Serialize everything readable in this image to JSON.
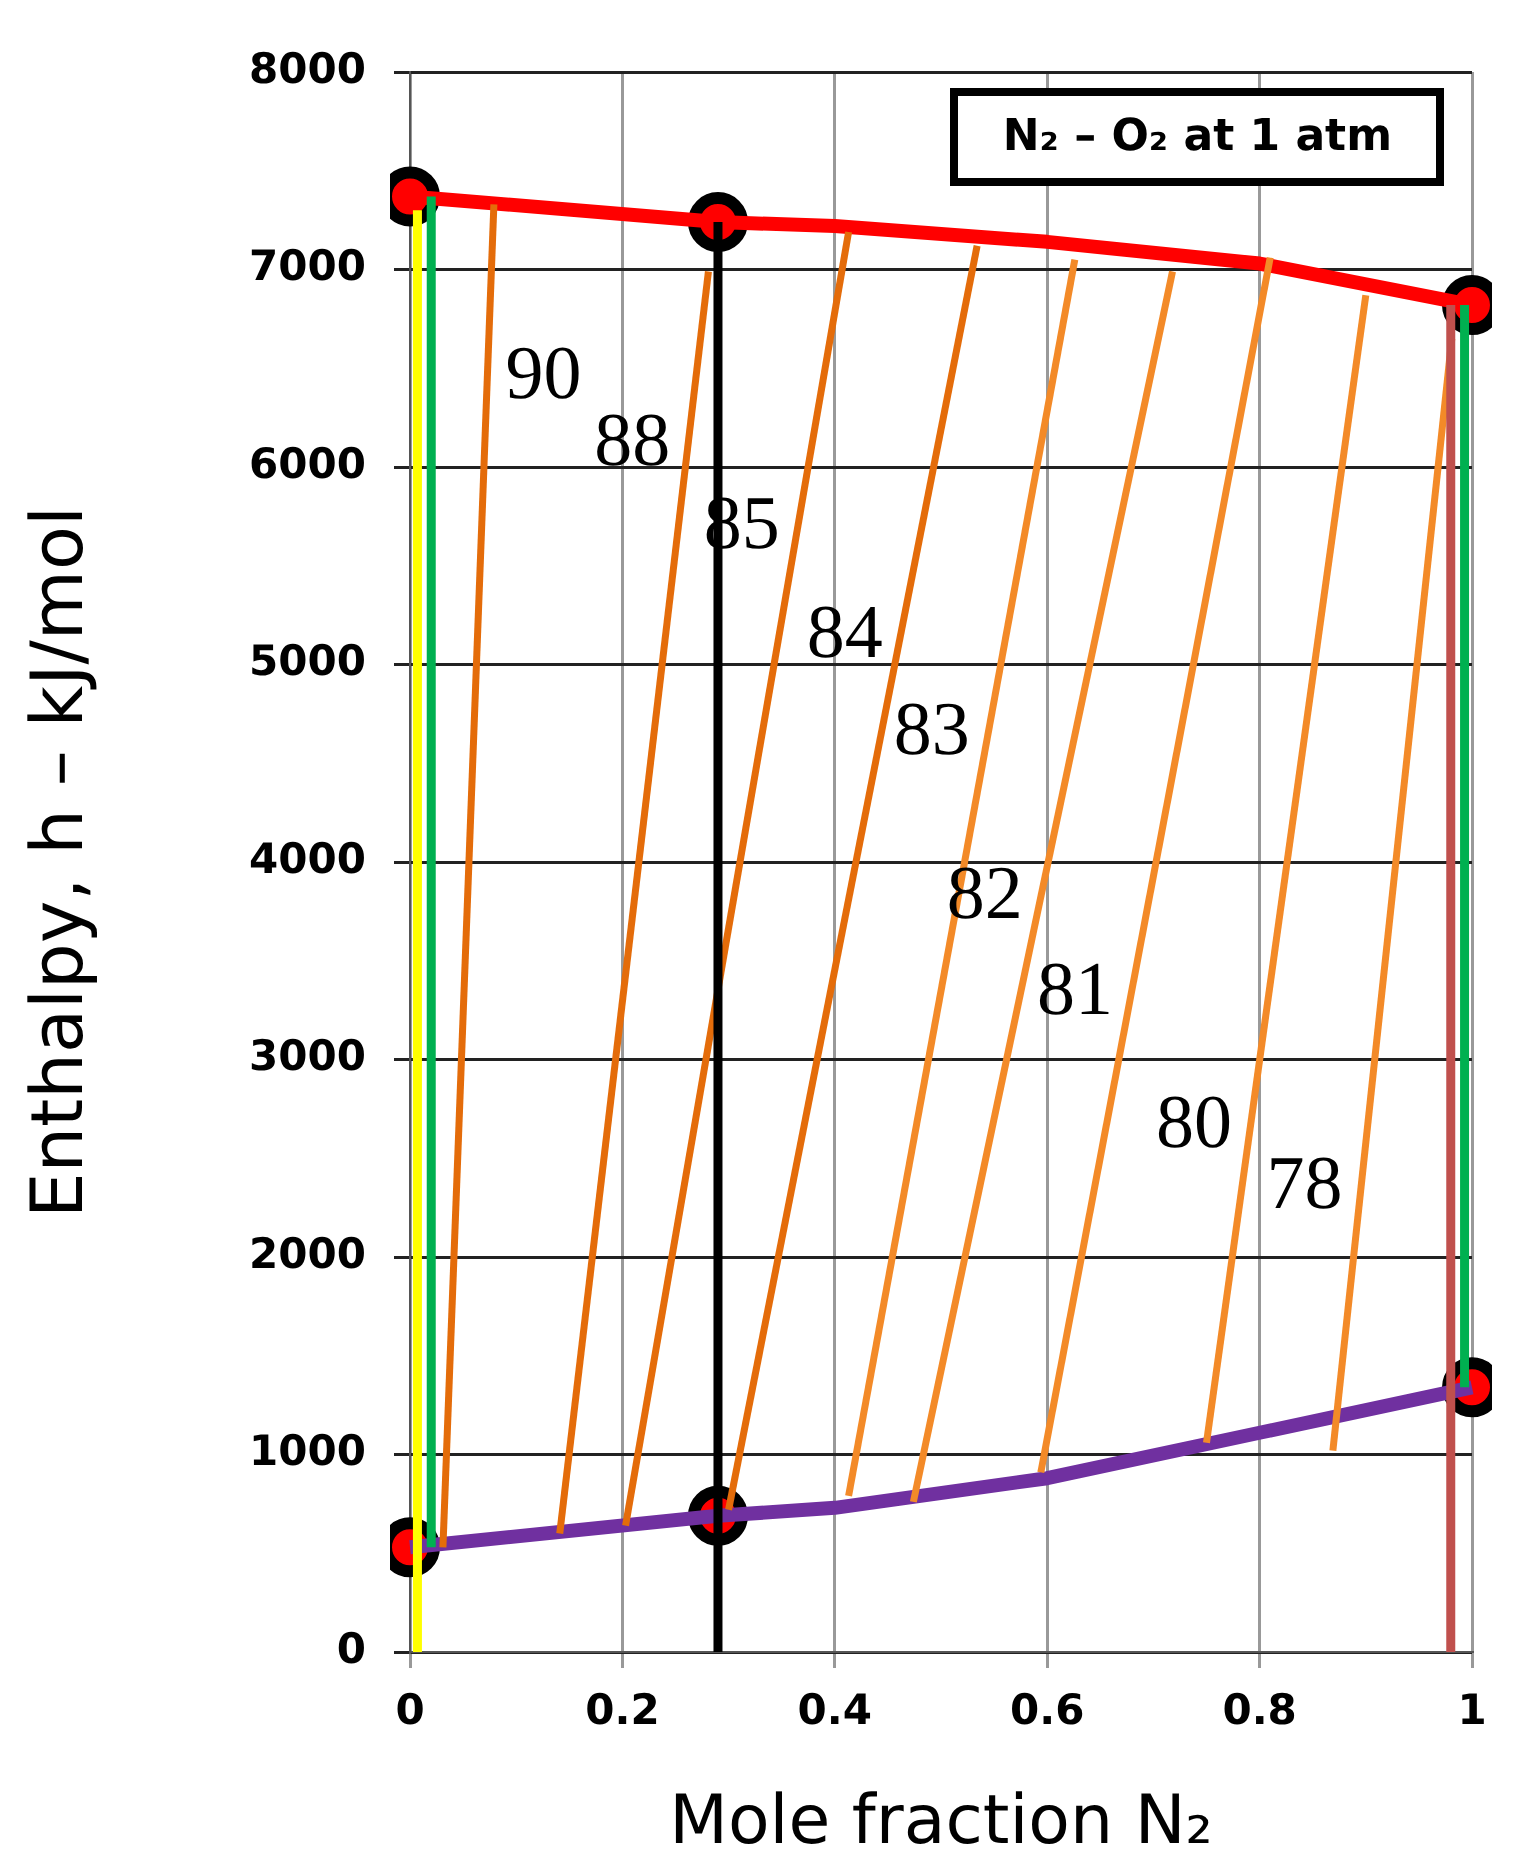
{
  "chart_data": {
    "type": "line",
    "title": "N₂ – O₂ at 1 atm",
    "xlabel": "Mole fraction N₂",
    "ylabel": "Enthalpy, h – kJ/mol",
    "xlim": [
      0,
      1
    ],
    "xticks": [
      0,
      0.2,
      0.4,
      0.6,
      0.8,
      1
    ],
    "ylim": [
      0,
      8000
    ],
    "yticks": [
      0,
      1000,
      2000,
      3000,
      4000,
      5000,
      6000,
      7000,
      8000
    ],
    "grid": true,
    "legend": false,
    "marker": "none",
    "line_style": "solid",
    "series": [
      {
        "type": "line",
        "color": "#ffff00",
        "x": [
          0.007,
          0.007
        ],
        "values": [
          0,
          7300
        ]
      },
      {
        "type": "line",
        "color": "#00b050",
        "x": [
          0.02,
          0.02
        ],
        "values": [
          530,
          7370
        ]
      },
      {
        "type": "line",
        "color": "#000000",
        "x": [
          0.29,
          0.29
        ],
        "values": [
          0,
          7240
        ]
      },
      {
        "type": "line",
        "color": "#c0504d",
        "x": [
          0.98,
          0.98
        ],
        "values": [
          0,
          6820
        ]
      },
      {
        "type": "line",
        "color": "#00b050",
        "x": [
          0.993,
          0.993
        ],
        "values": [
          1340,
          6820
        ]
      },
      {
        "type": "line",
        "color": "#e46c0a",
        "x": [
          0.031,
          0.079
        ],
        "values": [
          530,
          7330
        ]
      },
      {
        "type": "line",
        "color": "#e46c0a",
        "x": [
          0.141,
          0.281
        ],
        "values": [
          600,
          6990
        ]
      },
      {
        "type": "line",
        "color": "#e46c0a",
        "x": [
          0.203,
          0.413
        ],
        "values": [
          640,
          7190
        ]
      },
      {
        "type": "line",
        "color": "#e46c0a",
        "x": [
          0.3,
          0.534
        ],
        "values": [
          720,
          7120
        ]
      },
      {
        "type": "line",
        "color": "#f38a28",
        "x": [
          0.413,
          0.626
        ],
        "values": [
          790,
          7050
        ]
      },
      {
        "type": "line",
        "color": "#f38a28",
        "x": [
          0.474,
          0.718
        ],
        "values": [
          760,
          6990
        ]
      },
      {
        "type": "line",
        "color": "#f38a28",
        "x": [
          0.594,
          0.81
        ],
        "values": [
          910,
          7060
        ]
      },
      {
        "type": "line",
        "color": "#f38a28",
        "x": [
          0.75,
          0.9
        ],
        "values": [
          1060,
          6870
        ]
      },
      {
        "type": "line",
        "color": "#f38a28",
        "x": [
          0.869,
          0.981
        ],
        "values": [
          1020,
          6650
        ]
      },
      {
        "type": "line",
        "color": "#ff0000",
        "x": [
          0,
          0.29,
          0.4,
          0.6,
          0.8,
          1
        ],
        "values": [
          7370,
          7240,
          7220,
          7140,
          7030,
          6820
        ]
      },
      {
        "type": "line",
        "color": "#7030a0",
        "x": [
          0,
          0.29,
          0.4,
          0.6,
          0.8,
          1
        ],
        "values": [
          530,
          690,
          730,
          880,
          1110,
          1340
        ]
      },
      {
        "type": "scatter",
        "marker": "circle",
        "color": "#ff0000",
        "x": [
          0,
          0.29,
          1,
          0,
          0.29,
          1
        ],
        "values": [
          7370,
          7240,
          6820,
          530,
          690,
          1340
        ]
      }
    ],
    "annotations": [
      {
        "text": "90",
        "x": 0.073,
        "y": 6450
      },
      {
        "text": "88",
        "x": 0.262,
        "y": 6110
      },
      {
        "text": "85",
        "x": 0.365,
        "y": 5690
      },
      {
        "text": "84",
        "x": 0.462,
        "y": 5140
      },
      {
        "text": "83",
        "x": 0.544,
        "y": 4650
      },
      {
        "text": "82",
        "x": 0.594,
        "y": 3820
      },
      {
        "text": "81",
        "x": 0.679,
        "y": 3330
      },
      {
        "text": "80",
        "x": 0.791,
        "y": 2660
      },
      {
        "text": "78",
        "x": 0.895,
        "y": 2350
      }
    ]
  }
}
